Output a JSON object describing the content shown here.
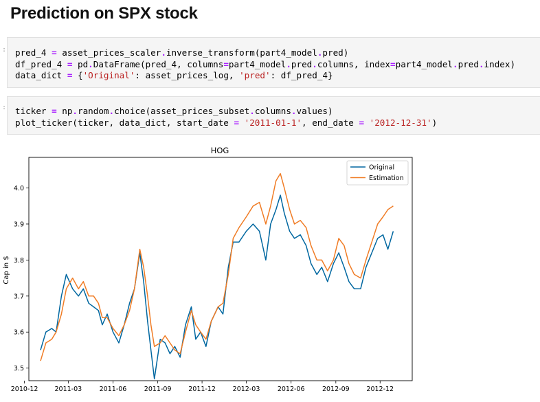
{
  "page_title": "Prediction on SPX stock",
  "cells": [
    {
      "lines": [
        [
          [
            "pred_4 ",
            ""
          ],
          [
            "=",
            "op"
          ],
          [
            " asset_prices_scaler",
            ""
          ],
          [
            ".",
            "op"
          ],
          [
            "inverse_transform(part4_model",
            ""
          ],
          [
            ".",
            "op"
          ],
          [
            "pred)",
            ""
          ]
        ],
        [
          [
            "df_pred_4 ",
            ""
          ],
          [
            "=",
            "op"
          ],
          [
            " pd",
            ""
          ],
          [
            ".",
            "op"
          ],
          [
            "DataFrame(pred_4, columns",
            ""
          ],
          [
            "=",
            "op"
          ],
          [
            "part4_model",
            ""
          ],
          [
            ".",
            "op"
          ],
          [
            "pred",
            ""
          ],
          [
            ".",
            "op"
          ],
          [
            "columns, index",
            ""
          ],
          [
            "=",
            "op"
          ],
          [
            "part4_model",
            ""
          ],
          [
            ".",
            "op"
          ],
          [
            "pred",
            ""
          ],
          [
            ".",
            "op"
          ],
          [
            "index)",
            ""
          ]
        ],
        [
          [
            "data_dict ",
            ""
          ],
          [
            "=",
            "op"
          ],
          [
            " {",
            ""
          ],
          [
            "'Original'",
            "str"
          ],
          [
            ": asset_prices_log, ",
            ""
          ],
          [
            "'pred'",
            "str"
          ],
          [
            ": df_pred_4}",
            ""
          ]
        ]
      ]
    },
    {
      "lines": [
        [
          [
            "ticker ",
            ""
          ],
          [
            "=",
            "op"
          ],
          [
            " np",
            ""
          ],
          [
            ".",
            "op"
          ],
          [
            "random",
            ""
          ],
          [
            ".",
            "op"
          ],
          [
            "choice(asset_prices_subset",
            ""
          ],
          [
            ".",
            "op"
          ],
          [
            "columns",
            ""
          ],
          [
            ".",
            "op"
          ],
          [
            "values)",
            ""
          ]
        ],
        [
          [
            "plot_ticker(ticker, data_dict, start_date ",
            ""
          ],
          [
            "=",
            "op"
          ],
          [
            " ",
            ""
          ],
          [
            "'2011-01-1'",
            "str"
          ],
          [
            ", end_date ",
            ""
          ],
          [
            "=",
            "op"
          ],
          [
            " ",
            ""
          ],
          [
            "'2012-12-31'",
            "str"
          ],
          [
            ")",
            ""
          ]
        ]
      ]
    }
  ],
  "chart_data": {
    "type": "line",
    "title": "HOG",
    "xlabel": "",
    "ylabel": "Cap in $",
    "xlim": [
      "2010-12-10",
      "2013-02-05"
    ],
    "ylim": [
      3.465,
      4.085
    ],
    "x_ticks": [
      "2010-12",
      "2011-03",
      "2011-06",
      "2011-09",
      "2011-12",
      "2012-03",
      "2012-06",
      "2012-09",
      "2012-12"
    ],
    "y_ticks": [
      3.5,
      3.6,
      3.7,
      3.8,
      3.9,
      4.0
    ],
    "legend_position": "top-right",
    "grid": false,
    "series": [
      {
        "name": "Original",
        "color": "#0067a0",
        "points": [
          [
            "2011-01-03",
            3.55
          ],
          [
            "2011-01-14",
            3.6
          ],
          [
            "2011-01-26",
            3.61
          ],
          [
            "2011-02-04",
            3.6
          ],
          [
            "2011-02-15",
            3.7
          ],
          [
            "2011-02-25",
            3.76
          ],
          [
            "2011-03-10",
            3.72
          ],
          [
            "2011-03-22",
            3.7
          ],
          [
            "2011-04-01",
            3.72
          ],
          [
            "2011-04-12",
            3.68
          ],
          [
            "2011-04-22",
            3.67
          ],
          [
            "2011-05-02",
            3.66
          ],
          [
            "2011-05-10",
            3.62
          ],
          [
            "2011-05-20",
            3.65
          ],
          [
            "2011-06-01",
            3.6
          ],
          [
            "2011-06-13",
            3.57
          ],
          [
            "2011-06-24",
            3.62
          ],
          [
            "2011-07-05",
            3.68
          ],
          [
            "2011-07-15",
            3.72
          ],
          [
            "2011-07-26",
            3.82
          ],
          [
            "2011-08-03",
            3.74
          ],
          [
            "2011-08-11",
            3.63
          ],
          [
            "2011-08-18",
            3.55
          ],
          [
            "2011-08-25",
            3.47
          ],
          [
            "2011-09-06",
            3.58
          ],
          [
            "2011-09-16",
            3.57
          ],
          [
            "2011-09-26",
            3.54
          ],
          [
            "2011-10-06",
            3.56
          ],
          [
            "2011-10-17",
            3.53
          ],
          [
            "2011-10-28",
            3.62
          ],
          [
            "2011-11-09",
            3.67
          ],
          [
            "2011-11-18",
            3.58
          ],
          [
            "2011-11-28",
            3.6
          ],
          [
            "2011-12-09",
            3.56
          ],
          [
            "2011-12-20",
            3.63
          ],
          [
            "2012-01-03",
            3.67
          ],
          [
            "2012-01-13",
            3.65
          ],
          [
            "2012-01-24",
            3.78
          ],
          [
            "2012-02-03",
            3.85
          ],
          [
            "2012-02-15",
            3.85
          ],
          [
            "2012-03-01",
            3.88
          ],
          [
            "2012-03-15",
            3.9
          ],
          [
            "2012-03-28",
            3.88
          ],
          [
            "2012-04-10",
            3.8
          ],
          [
            "2012-04-20",
            3.9
          ],
          [
            "2012-05-01",
            3.94
          ],
          [
            "2012-05-10",
            3.98
          ],
          [
            "2012-05-18",
            3.93
          ],
          [
            "2012-05-29",
            3.88
          ],
          [
            "2012-06-08",
            3.86
          ],
          [
            "2012-06-20",
            3.87
          ],
          [
            "2012-07-02",
            3.84
          ],
          [
            "2012-07-12",
            3.79
          ],
          [
            "2012-07-24",
            3.76
          ],
          [
            "2012-08-03",
            3.78
          ],
          [
            "2012-08-15",
            3.74
          ],
          [
            "2012-08-27",
            3.79
          ],
          [
            "2012-09-07",
            3.82
          ],
          [
            "2012-09-18",
            3.78
          ],
          [
            "2012-09-28",
            3.74
          ],
          [
            "2012-10-09",
            3.72
          ],
          [
            "2012-10-22",
            3.72
          ],
          [
            "2012-11-02",
            3.78
          ],
          [
            "2012-11-14",
            3.82
          ],
          [
            "2012-11-26",
            3.86
          ],
          [
            "2012-12-07",
            3.87
          ],
          [
            "2012-12-17",
            3.83
          ],
          [
            "2012-12-28",
            3.88
          ]
        ]
      },
      {
        "name": "Estimation",
        "color": "#f07c25",
        "points": [
          [
            "2011-01-03",
            3.52
          ],
          [
            "2011-01-14",
            3.57
          ],
          [
            "2011-01-26",
            3.58
          ],
          [
            "2011-02-04",
            3.6
          ],
          [
            "2011-02-15",
            3.65
          ],
          [
            "2011-02-25",
            3.72
          ],
          [
            "2011-03-10",
            3.75
          ],
          [
            "2011-03-22",
            3.72
          ],
          [
            "2011-04-01",
            3.74
          ],
          [
            "2011-04-12",
            3.7
          ],
          [
            "2011-04-22",
            3.7
          ],
          [
            "2011-05-02",
            3.68
          ],
          [
            "2011-05-10",
            3.64
          ],
          [
            "2011-05-20",
            3.64
          ],
          [
            "2011-06-01",
            3.61
          ],
          [
            "2011-06-13",
            3.59
          ],
          [
            "2011-06-24",
            3.62
          ],
          [
            "2011-07-05",
            3.66
          ],
          [
            "2011-07-15",
            3.72
          ],
          [
            "2011-07-26",
            3.83
          ],
          [
            "2011-08-03",
            3.78
          ],
          [
            "2011-08-11",
            3.7
          ],
          [
            "2011-08-18",
            3.62
          ],
          [
            "2011-08-25",
            3.56
          ],
          [
            "2011-09-06",
            3.57
          ],
          [
            "2011-09-16",
            3.59
          ],
          [
            "2011-09-26",
            3.57
          ],
          [
            "2011-10-06",
            3.55
          ],
          [
            "2011-10-17",
            3.54
          ],
          [
            "2011-10-28",
            3.6
          ],
          [
            "2011-11-09",
            3.66
          ],
          [
            "2011-11-18",
            3.62
          ],
          [
            "2011-11-28",
            3.6
          ],
          [
            "2011-12-09",
            3.58
          ],
          [
            "2011-12-20",
            3.63
          ],
          [
            "2012-01-03",
            3.67
          ],
          [
            "2012-01-13",
            3.68
          ],
          [
            "2012-01-24",
            3.76
          ],
          [
            "2012-02-03",
            3.86
          ],
          [
            "2012-02-15",
            3.89
          ],
          [
            "2012-03-01",
            3.92
          ],
          [
            "2012-03-15",
            3.95
          ],
          [
            "2012-03-28",
            3.96
          ],
          [
            "2012-04-10",
            3.9
          ],
          [
            "2012-04-20",
            3.95
          ],
          [
            "2012-05-01",
            4.02
          ],
          [
            "2012-05-10",
            4.04
          ],
          [
            "2012-05-18",
            4.0
          ],
          [
            "2012-05-29",
            3.94
          ],
          [
            "2012-06-08",
            3.9
          ],
          [
            "2012-06-20",
            3.91
          ],
          [
            "2012-07-02",
            3.89
          ],
          [
            "2012-07-12",
            3.84
          ],
          [
            "2012-07-24",
            3.8
          ],
          [
            "2012-08-03",
            3.8
          ],
          [
            "2012-08-15",
            3.77
          ],
          [
            "2012-08-27",
            3.8
          ],
          [
            "2012-09-07",
            3.86
          ],
          [
            "2012-09-18",
            3.84
          ],
          [
            "2012-09-28",
            3.79
          ],
          [
            "2012-10-09",
            3.76
          ],
          [
            "2012-10-22",
            3.75
          ],
          [
            "2012-11-02",
            3.8
          ],
          [
            "2012-11-14",
            3.85
          ],
          [
            "2012-11-26",
            3.9
          ],
          [
            "2012-12-07",
            3.92
          ],
          [
            "2012-12-17",
            3.94
          ],
          [
            "2012-12-28",
            3.95
          ]
        ]
      }
    ]
  }
}
